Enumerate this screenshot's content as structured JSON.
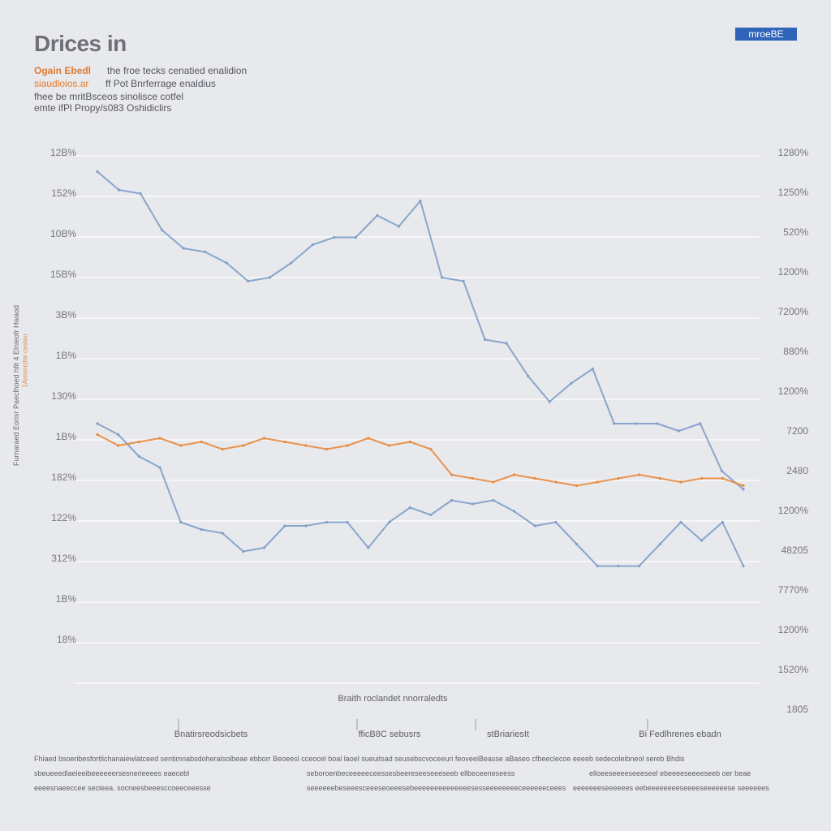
{
  "header": {
    "title": "Drices in",
    "badge": "mroeBE",
    "sub_orange": "Ogain Ebedl",
    "sub_line1": "the froe tecks cenatied enalidion",
    "sub_line2_orange": "siaudloios.ar",
    "sub_line2": "ff Pot Bnrferrage enaldius",
    "sub_line3": "fhee be mritBsceos sinolisce cotfel",
    "sub_line4": "emte ifPl Propy/s083 Oshidiclirs"
  },
  "colors": {
    "background": "#e8e9ed",
    "blue": "#7f9fc8",
    "orange": "#e88a3c",
    "grid": "#ffffff",
    "badge": "#2f64b9"
  },
  "chart_data": {
    "type": "line",
    "left_axis_ticks": [
      "12B%",
      "152%",
      "10B%",
      "15B%",
      "3B%",
      "1B%",
      "130%",
      "1B%",
      "182%",
      "122%",
      "312%",
      "1B%",
      "18%"
    ],
    "right_axis_ticks": [
      "1280%",
      "1250%",
      "520%",
      "1200%",
      "7200%",
      "880%",
      "1200%",
      "7200",
      "2480",
      "1200%",
      "48205",
      "7770%",
      "1200%",
      "1520%",
      "1805"
    ],
    "ylabel": "Furnaraed Eorisr Paeclhoed hfit 4 Elnieofr Hwaod",
    "ylabel_secondary": "1Amoncttte cesteo",
    "xlabel": "Braith roclandet nnorraledts",
    "x_tick_labels": [
      "Bnatirsreodsicbets",
      "fficB8C sebusrs",
      "stBriariesIt",
      "Bi Fedlhrenes ebadn"
    ],
    "series": [
      {
        "color": "#7f9fc8",
        "values": [
          93,
          88,
          87,
          77,
          72,
          71,
          68,
          63,
          64,
          68,
          73,
          75,
          75,
          81,
          78,
          85,
          64,
          63,
          47,
          46,
          37,
          30,
          35,
          39,
          24,
          24,
          24,
          22,
          24,
          11,
          6
        ]
      },
      {
        "color": "#7f9fc8",
        "values": [
          24,
          21,
          15,
          12,
          -3,
          -5,
          -6,
          -11,
          -10,
          -4,
          -4,
          -3,
          -3,
          -10,
          -3,
          1,
          -1,
          3,
          2,
          3,
          0,
          -4,
          -3,
          -9,
          -15,
          -15,
          -15,
          -9,
          -3,
          -8,
          -3,
          -15
        ]
      },
      {
        "color": "#e88a3c",
        "values": [
          21,
          18,
          19,
          20,
          18,
          19,
          17,
          18,
          20,
          19,
          18,
          17,
          18,
          20,
          18,
          19,
          17,
          10,
          9,
          8,
          10,
          9,
          8,
          7,
          8,
          9,
          10,
          9,
          8,
          9,
          9,
          7
        ]
      }
    ]
  },
  "footer": {
    "line1": "Fhiaed bsoeribesfortlichanaiewlatceed sentimnabsdoheralsolbeae ebborr Beoeesl cceocel boal laoel sueuitsad seusebscvoceeuri feoveeiBeasse aBaseo cfbeeclecoe eeeeb sedecoleibneol sereb Bhdis",
    "line2a": "sbeueeedlaeleeibeeeeeersesnerieeees eaecebl",
    "line2b": "seboroenbeceeeeeceessesbeereseeseeeseeb ellbeceeneseess",
    "line2c": "elloeeseeeeseeeseel ebeeeeseeeeseeb oer beae",
    "line3a": "eeeesnaeeccee secieea. socneesbeeesccoeeceeesse",
    "line3b": "seeeeeebeseeesceeeseoeeesebeeeeeeeeeeeeeesesseeeeeeeeceeeeeeceees",
    "line3c": "eeeeeeeseeeeees eebeeeeeeeeseeeeseeeeeese seeeeees"
  }
}
